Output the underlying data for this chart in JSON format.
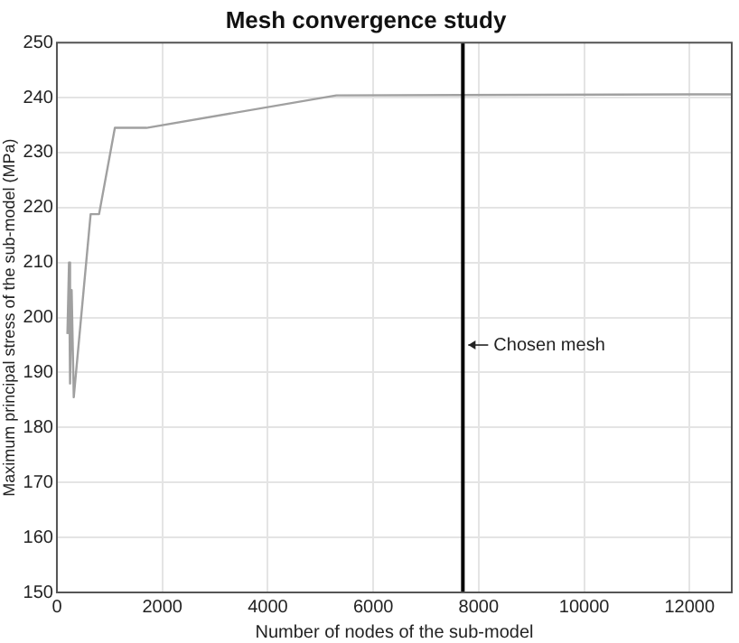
{
  "chart_data": {
    "type": "line",
    "title": "Mesh convergence study",
    "xlabel": "Number of nodes of the sub-model",
    "ylabel": "Maximum principal stress of the sub-model (MPa)",
    "x": [
      200,
      230,
      250,
      280,
      320,
      640,
      800,
      1100,
      1700,
      5300,
      12800
    ],
    "series": [
      {
        "color": "#a0a0a0",
        "values": [
          197,
          210,
          188,
          205,
          185.5,
          218.8,
          218.8,
          234.5,
          234.5,
          240.4,
          240.6
        ]
      }
    ],
    "xlim": [
      0,
      12800
    ],
    "xticks": [
      0,
      2000,
      4000,
      6000,
      8000,
      10000,
      12000
    ],
    "ylim": [
      150,
      250
    ],
    "yticks": [
      150,
      160,
      170,
      180,
      190,
      200,
      210,
      220,
      230,
      240,
      250
    ],
    "grid": true,
    "legend": false,
    "marker": "none",
    "line_style": "solid",
    "ref_lines": [
      {
        "axis": "x",
        "value": 7700,
        "label": "Chosen mesh",
        "color": "#000000"
      }
    ]
  }
}
